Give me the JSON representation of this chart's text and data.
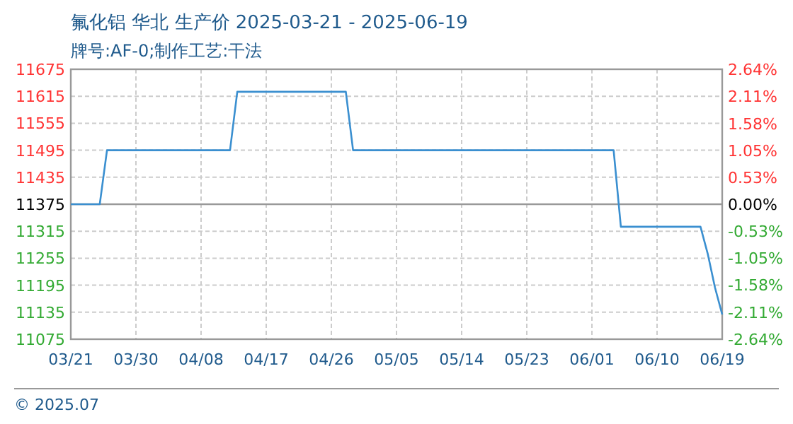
{
  "chart_data": {
    "type": "line",
    "title": "氟化铝 华北 生产价 2025-03-21 - 2025-06-19",
    "subtitle": "牌号:AF-0;制作工艺:干法",
    "x": [
      "2025-03-21",
      "2025-03-25",
      "2025-03-26",
      "2025-04-12",
      "2025-04-13",
      "2025-04-28",
      "2025-04-29",
      "2025-06-04",
      "2025-06-05",
      "2025-06-16",
      "2025-06-17",
      "2025-06-18",
      "2025-06-19"
    ],
    "series": [
      {
        "color": "#3a8fd0",
        "values": [
          11375,
          11375,
          11495,
          11495,
          11625,
          11625,
          11495,
          11495,
          11325,
          11325,
          11265,
          11190,
          11130
        ]
      }
    ],
    "xlim": [
      "2025-03-21",
      "2025-06-19"
    ],
    "xticks": [
      {
        "value": "2025-03-21",
        "label": "03/21"
      },
      {
        "value": "2025-03-30",
        "label": "03/30"
      },
      {
        "value": "2025-04-08",
        "label": "04/08"
      },
      {
        "value": "2025-04-17",
        "label": "04/17"
      },
      {
        "value": "2025-04-26",
        "label": "04/26"
      },
      {
        "value": "2025-05-05",
        "label": "05/05"
      },
      {
        "value": "2025-05-14",
        "label": "05/14"
      },
      {
        "value": "2025-05-23",
        "label": "05/23"
      },
      {
        "value": "2025-06-01",
        "label": "06/01"
      },
      {
        "value": "2025-06-10",
        "label": "06/10"
      },
      {
        "value": "2025-06-19",
        "label": "06/19"
      }
    ],
    "ylim": [
      11075,
      11675
    ],
    "yticks": [
      11075,
      11135,
      11195,
      11255,
      11315,
      11375,
      11435,
      11495,
      11555,
      11615,
      11675
    ],
    "y2lim": [
      -2.64,
      2.64
    ],
    "y2ticks": [
      {
        "value": -2.64,
        "label": "-2.64%"
      },
      {
        "value": -2.11,
        "label": "-2.11%"
      },
      {
        "value": -1.58,
        "label": "-1.58%"
      },
      {
        "value": -1.05,
        "label": "-1.05%"
      },
      {
        "value": -0.53,
        "label": "-0.53%"
      },
      {
        "value": 0,
        "label": "0.00%"
      },
      {
        "value": 0.53,
        "label": "0.53%"
      },
      {
        "value": 1.05,
        "label": "1.05%"
      },
      {
        "value": 1.58,
        "label": "1.58%"
      },
      {
        "value": 2.11,
        "label": "2.11%"
      },
      {
        "value": 2.64,
        "label": "2.64%"
      }
    ],
    "ref_lines": [
      {
        "axis": "y",
        "value": 11375,
        "color": "#999999"
      }
    ],
    "grid": true,
    "annotations": [
      "© 2025.07"
    ]
  }
}
